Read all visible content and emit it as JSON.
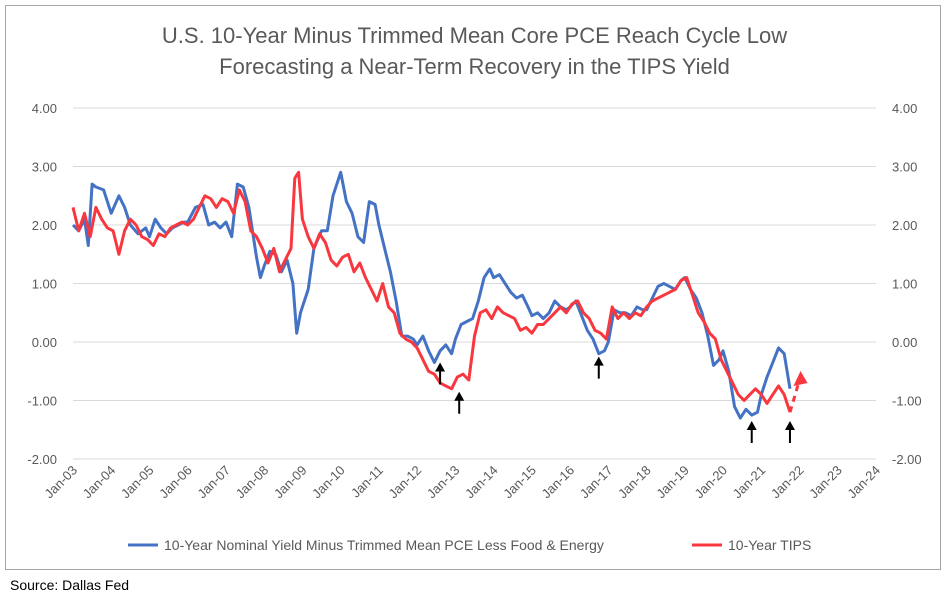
{
  "chart_data": {
    "type": "line",
    "title": "U.S. 10-Year Minus Trimmed Mean Core PCE Reach Cycle Low\nForecasting a Near-Term Recovery in the TIPS Yield",
    "title_lines": [
      "U.S. 10-Year Minus Trimmed Mean Core PCE Reach Cycle Low",
      "Forecasting a Near-Term Recovery in the TIPS Yield"
    ],
    "x_tick_labels": [
      "Jan-03",
      "Jan-04",
      "Jan-05",
      "Jan-06",
      "Jan-07",
      "Jan-08",
      "Jan-09",
      "Jan-10",
      "Jan-11",
      "Jan-12",
      "Jan-13",
      "Jan-14",
      "Jan-15",
      "Jan-16",
      "Jan-17",
      "Jan-18",
      "Jan-19",
      "Jan-20",
      "Jan-21",
      "Jan-22",
      "Jan-23",
      "Jan-24"
    ],
    "xlim": [
      2003.0,
      2024.0
    ],
    "ylim": [
      -2.0,
      4.0
    ],
    "y_tick_labels": [
      "4.00",
      "3.00",
      "2.00",
      "1.00",
      "0.00",
      "-1.00",
      "-2.00"
    ],
    "y_ticks": [
      4,
      3,
      2,
      1,
      0,
      -1,
      -2
    ],
    "grid": true,
    "legend_position": "bottom",
    "series": [
      {
        "name": "10-Year Nominal Yield Minus Trimmed Mean PCE Less Food & Energy",
        "color": "#4472c4",
        "x": [
          2003.0,
          2003.15,
          2003.3,
          2003.4,
          2003.5,
          2003.6,
          2003.8,
          2004.0,
          2004.2,
          2004.35,
          2004.5,
          2004.7,
          2004.9,
          2005.0,
          2005.15,
          2005.3,
          2005.45,
          2005.6,
          2005.75,
          2005.9,
          2006.0,
          2006.2,
          2006.4,
          2006.55,
          2006.7,
          2006.85,
          2007.0,
          2007.15,
          2007.3,
          2007.45,
          2007.6,
          2007.8,
          2007.9,
          2008.0,
          2008.15,
          2008.3,
          2008.45,
          2008.6,
          2008.75,
          2008.85,
          2008.95,
          2009.0,
          2009.15,
          2009.3,
          2009.5,
          2009.65,
          2009.8,
          2010.0,
          2010.15,
          2010.3,
          2010.45,
          2010.6,
          2010.75,
          2010.9,
          2011.0,
          2011.15,
          2011.3,
          2011.45,
          2011.6,
          2011.75,
          2011.9,
          2012.0,
          2012.15,
          2012.3,
          2012.45,
          2012.6,
          2012.75,
          2012.9,
          2013.0,
          2013.15,
          2013.3,
          2013.45,
          2013.6,
          2013.75,
          2013.9,
          2014.0,
          2014.15,
          2014.3,
          2014.45,
          2014.6,
          2014.75,
          2014.9,
          2015.0,
          2015.15,
          2015.3,
          2015.45,
          2015.6,
          2015.75,
          2015.9,
          2016.0,
          2016.15,
          2016.3,
          2016.45,
          2016.6,
          2016.75,
          2016.9,
          2017.0,
          2017.15,
          2017.3,
          2017.45,
          2017.6,
          2017.75,
          2017.9,
          2018.0,
          2018.15,
          2018.3,
          2018.45,
          2018.6,
          2018.75,
          2018.9,
          2019.0,
          2019.15,
          2019.3,
          2019.45,
          2019.6,
          2019.75,
          2019.9,
          2020.0,
          2020.15,
          2020.3,
          2020.45,
          2020.6,
          2020.75,
          2020.9,
          2021.0,
          2021.15,
          2021.3,
          2021.45,
          2021.6,
          2021.75
        ],
        "y": [
          2.0,
          1.9,
          2.1,
          1.65,
          2.7,
          2.65,
          2.6,
          2.2,
          2.5,
          2.3,
          2.0,
          1.85,
          1.95,
          1.8,
          2.1,
          1.95,
          1.85,
          1.95,
          2.0,
          2.05,
          2.05,
          2.3,
          2.35,
          2.0,
          2.05,
          1.95,
          2.05,
          1.8,
          2.7,
          2.65,
          2.3,
          1.45,
          1.1,
          1.3,
          1.55,
          1.5,
          1.2,
          1.4,
          1.0,
          0.15,
          0.5,
          0.6,
          0.9,
          1.6,
          1.9,
          1.9,
          2.5,
          2.9,
          2.4,
          2.2,
          1.8,
          1.7,
          2.4,
          2.35,
          2.0,
          1.6,
          1.2,
          0.7,
          0.1,
          0.1,
          0.05,
          -0.05,
          0.1,
          -0.15,
          -0.35,
          -0.15,
          -0.05,
          -0.2,
          0.05,
          0.3,
          0.35,
          0.4,
          0.7,
          1.1,
          1.25,
          1.1,
          1.15,
          1.0,
          0.85,
          0.75,
          0.8,
          0.6,
          0.45,
          0.5,
          0.4,
          0.5,
          0.7,
          0.6,
          0.55,
          0.6,
          0.7,
          0.45,
          0.2,
          0.05,
          -0.2,
          -0.15,
          0.0,
          0.55,
          0.5,
          0.5,
          0.45,
          0.6,
          0.55,
          0.55,
          0.75,
          0.95,
          1.0,
          0.95,
          0.9,
          1.05,
          1.1,
          0.9,
          0.75,
          0.5,
          0.1,
          -0.4,
          -0.3,
          -0.15,
          -0.5,
          -1.1,
          -1.3,
          -1.15,
          -1.25,
          -1.2,
          -0.9,
          -0.6,
          -0.35,
          -0.1,
          -0.2,
          -0.8
        ]
      },
      {
        "name": "10-Year TIPS",
        "color": "#f8373e",
        "x": [
          2003.0,
          2003.15,
          2003.3,
          2003.45,
          2003.6,
          2003.75,
          2003.9,
          2004.05,
          2004.2,
          2004.35,
          2004.5,
          2004.65,
          2004.8,
          2004.95,
          2005.1,
          2005.25,
          2005.4,
          2005.55,
          2005.7,
          2005.85,
          2006.0,
          2006.15,
          2006.3,
          2006.45,
          2006.6,
          2006.75,
          2006.9,
          2007.05,
          2007.2,
          2007.35,
          2007.5,
          2007.65,
          2007.8,
          2007.95,
          2008.1,
          2008.25,
          2008.4,
          2008.55,
          2008.7,
          2008.8,
          2008.9,
          2009.0,
          2009.15,
          2009.3,
          2009.45,
          2009.6,
          2009.75,
          2009.9,
          2010.05,
          2010.2,
          2010.35,
          2010.5,
          2010.65,
          2010.8,
          2010.95,
          2011.1,
          2011.25,
          2011.4,
          2011.55,
          2011.7,
          2011.85,
          2012.0,
          2012.15,
          2012.3,
          2012.45,
          2012.6,
          2012.75,
          2012.9,
          2013.05,
          2013.2,
          2013.35,
          2013.5,
          2013.65,
          2013.8,
          2013.95,
          2014.1,
          2014.25,
          2014.4,
          2014.55,
          2014.7,
          2014.85,
          2015.0,
          2015.15,
          2015.3,
          2015.45,
          2015.6,
          2015.75,
          2015.9,
          2016.05,
          2016.2,
          2016.35,
          2016.5,
          2016.65,
          2016.8,
          2016.95,
          2017.1,
          2017.25,
          2017.4,
          2017.55,
          2017.7,
          2017.85,
          2018.0,
          2018.15,
          2018.3,
          2018.45,
          2018.6,
          2018.75,
          2018.9,
          2019.05,
          2019.2,
          2019.35,
          2019.5,
          2019.65,
          2019.8,
          2019.95,
          2020.1,
          2020.25,
          2020.4,
          2020.55,
          2020.7,
          2020.85,
          2021.0,
          2021.15,
          2021.3,
          2021.45,
          2021.6,
          2021.75
        ],
        "y": [
          2.3,
          1.9,
          2.2,
          1.8,
          2.3,
          2.1,
          1.95,
          1.9,
          1.5,
          1.9,
          2.1,
          2.0,
          1.8,
          1.75,
          1.65,
          1.85,
          1.8,
          1.95,
          2.0,
          2.05,
          2.0,
          2.1,
          2.3,
          2.5,
          2.45,
          2.3,
          2.45,
          2.4,
          2.2,
          2.6,
          2.4,
          1.9,
          1.8,
          1.6,
          1.35,
          1.6,
          1.2,
          1.4,
          1.6,
          2.8,
          2.9,
          2.1,
          1.8,
          1.6,
          1.85,
          1.7,
          1.4,
          1.3,
          1.45,
          1.5,
          1.2,
          1.35,
          1.1,
          0.9,
          0.7,
          1.0,
          0.6,
          0.5,
          0.15,
          0.05,
          0.0,
          -0.1,
          -0.3,
          -0.5,
          -0.55,
          -0.7,
          -0.75,
          -0.8,
          -0.6,
          -0.55,
          -0.65,
          0.1,
          0.5,
          0.55,
          0.4,
          0.6,
          0.5,
          0.45,
          0.4,
          0.2,
          0.25,
          0.15,
          0.3,
          0.3,
          0.4,
          0.5,
          0.6,
          0.5,
          0.65,
          0.7,
          0.5,
          0.4,
          0.2,
          0.15,
          0.05,
          0.6,
          0.4,
          0.5,
          0.4,
          0.5,
          0.45,
          0.6,
          0.7,
          0.75,
          0.8,
          0.85,
          0.9,
          1.05,
          1.1,
          0.8,
          0.5,
          0.35,
          0.15,
          0.05,
          -0.3,
          -0.5,
          -0.7,
          -0.9,
          -1.0,
          -0.9,
          -0.8,
          -0.9,
          -1.05,
          -0.9,
          -0.75,
          -0.9,
          -1.2
        ],
        "forecast": {
          "x": [
            2021.75,
            2022.0
          ],
          "y": [
            -1.2,
            -0.65
          ],
          "style": "dashed"
        }
      }
    ],
    "annotations": [
      {
        "type": "arrow-up",
        "x": 2012.6,
        "y": -0.35
      },
      {
        "type": "arrow-up",
        "x": 2013.1,
        "y": -0.85
      },
      {
        "type": "arrow-up",
        "x": 2016.75,
        "y": -0.25
      },
      {
        "type": "arrow-up",
        "x": 2020.75,
        "y": -1.35
      },
      {
        "type": "arrow-up",
        "x": 2021.75,
        "y": -1.35
      }
    ]
  },
  "source": "Source: Dallas Fed"
}
